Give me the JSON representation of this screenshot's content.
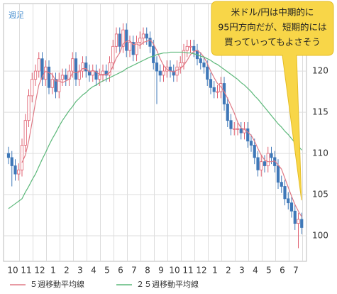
{
  "chart_data": {
    "type": "candlestick",
    "title": "週足",
    "categories": [
      "10",
      null,
      null,
      null,
      "11",
      null,
      null,
      null,
      "12",
      null,
      null,
      null,
      "1",
      null,
      null,
      null,
      "2",
      null,
      null,
      null,
      "3",
      null,
      null,
      null,
      "4",
      null,
      null,
      null,
      "5",
      null,
      null,
      null,
      "6",
      null,
      null,
      null,
      "7",
      null,
      null,
      null,
      "8",
      null,
      null,
      null,
      "9",
      null,
      null,
      null,
      "10",
      null,
      null,
      null,
      "11",
      null,
      null,
      null,
      "12",
      null,
      null,
      null,
      "1",
      null,
      null,
      null,
      "2",
      null,
      null,
      null,
      "3",
      null,
      null,
      null,
      "4",
      null,
      null,
      null,
      "5",
      null,
      null,
      null,
      "6",
      null,
      null,
      null,
      "7",
      null,
      null,
      null
    ],
    "open": [
      110,
      109.5,
      108.5,
      107.5,
      108,
      111,
      114,
      117,
      119,
      120,
      121.5,
      119,
      120.5,
      118,
      119,
      117.5,
      119,
      119.5,
      119,
      120,
      121.5,
      119,
      120,
      121,
      120,
      119.5,
      120,
      119,
      119.5,
      120,
      119.5,
      121,
      123,
      124.5,
      123,
      125,
      122.5,
      123.5,
      122,
      123.5,
      124,
      124.5,
      124,
      123,
      121,
      120,
      119.5,
      120,
      120.5,
      120,
      119.5,
      120.5,
      121,
      122.5,
      123,
      123,
      122.5,
      121.5,
      121,
      120.5,
      119,
      118,
      117.5,
      117.5,
      118.5,
      116,
      114,
      113,
      113,
      113,
      112.5,
      113,
      111.5,
      111,
      109.5,
      108,
      109,
      108.5,
      110,
      109.5,
      108.5,
      106.5,
      106,
      104.5,
      104,
      103,
      101.5,
      102
    ],
    "high": [
      110.8,
      110.3,
      109.3,
      108.8,
      111.8,
      114.8,
      117.8,
      119.8,
      120.8,
      122.3,
      122.3,
      121.3,
      121.3,
      119.8,
      119.8,
      119.8,
      120.3,
      120.3,
      120.8,
      122.3,
      122.3,
      120.8,
      121.8,
      121.8,
      120.8,
      120.8,
      120.8,
      120.3,
      120.8,
      120.8,
      121.8,
      123.8,
      125.3,
      125.3,
      125.8,
      125.8,
      124.3,
      124.3,
      124.3,
      124.8,
      125.3,
      125.3,
      124.8,
      123.8,
      121.8,
      120.8,
      120.8,
      121.3,
      121.3,
      120.8,
      121.3,
      121.8,
      123.3,
      123.8,
      123.8,
      123.8,
      123.3,
      122.3,
      121.8,
      121.3,
      119.8,
      118.8,
      118.3,
      119.3,
      119.3,
      116.8,
      114.8,
      113.8,
      113.8,
      113.8,
      113.8,
      113.8,
      112.3,
      111.8,
      110.3,
      109.8,
      109.8,
      110.8,
      110.8,
      110.3,
      109.3,
      107.3,
      106.8,
      105.3,
      104.8,
      103.8,
      102.8,
      102.8
    ],
    "low": [
      108.7,
      106.0,
      106.7,
      106.7,
      107.2,
      110.2,
      113.2,
      116.2,
      118.2,
      119.2,
      118.2,
      118.2,
      117.2,
      117.2,
      116.7,
      116.7,
      118.2,
      118.2,
      118.2,
      119.2,
      118.2,
      118.2,
      119.2,
      119.2,
      118.7,
      118.7,
      118.2,
      118.2,
      118.7,
      118.7,
      118.7,
      120.2,
      122.2,
      122.2,
      122.2,
      121.7,
      121.7,
      121.2,
      121.2,
      122.7,
      123.2,
      123.2,
      122.2,
      120.2,
      116.0,
      118.7,
      118.7,
      119.2,
      119.2,
      118.7,
      118.7,
      119.7,
      120.2,
      121.7,
      122.2,
      121.7,
      120.7,
      120.2,
      119.7,
      118.2,
      117.2,
      116.7,
      116.7,
      116.7,
      115.2,
      113.2,
      112.2,
      112.2,
      112.2,
      111.7,
      111.7,
      110.7,
      110.2,
      108.7,
      107.2,
      107.2,
      107.7,
      107.7,
      108.7,
      107.7,
      105.7,
      105.2,
      103.7,
      103.2,
      102.2,
      100.7,
      98.5,
      100.2
    ],
    "close": [
      109.5,
      108.5,
      107.5,
      108,
      111,
      114,
      117,
      119,
      120,
      121.5,
      119,
      120.5,
      118,
      119,
      117.5,
      119,
      119.5,
      119,
      120,
      121.5,
      119,
      120,
      121,
      120,
      119.5,
      120,
      119,
      119.5,
      120,
      119.5,
      121,
      123,
      124.5,
      123,
      125,
      122.5,
      123.5,
      122,
      123.5,
      124,
      124.5,
      124,
      123,
      121,
      120,
      119.5,
      120,
      120.5,
      120,
      119.5,
      120.5,
      121,
      122.5,
      123,
      123,
      122.5,
      121.5,
      121,
      120.5,
      119,
      118,
      117.5,
      117.5,
      118.5,
      116,
      114,
      113,
      113,
      113,
      112.5,
      113,
      111.5,
      111,
      109.5,
      108,
      109,
      108.5,
      110,
      109.5,
      108.5,
      106.5,
      106,
      104.5,
      104,
      103,
      101.5,
      102,
      101
    ],
    "up_color": "#e06070",
    "down_color": "#3f78b8",
    "series": [
      {
        "name": "５週移動平均線",
        "color": "#e07a86",
        "values": [
          null,
          null,
          null,
          null,
          108.9,
          109.8,
          111.5,
          113.8,
          116.2,
          118.3,
          119.3,
          120,
          119.8,
          119.6,
          118.8,
          118.8,
          118.6,
          118.8,
          119,
          119.8,
          119.8,
          119.9,
          120.3,
          120.3,
          119.9,
          120.1,
          119.9,
          119.6,
          119.6,
          119.6,
          119.8,
          120.6,
          121.6,
          122.2,
          123.3,
          123.6,
          123.7,
          123.2,
          123.3,
          123.1,
          123.5,
          123.6,
          123.8,
          123.3,
          122.5,
          121.5,
          120.7,
          120.2,
          120,
          119.9,
          120.1,
          120.3,
          120.7,
          121.3,
          122,
          122.4,
          122.5,
          122.2,
          121.7,
          120.9,
          120,
          119.2,
          118.5,
          118.1,
          117.5,
          116.7,
          115.8,
          114.9,
          113.8,
          113.1,
          112.9,
          112.6,
          112.2,
          111.5,
          110.6,
          109.8,
          109.2,
          109,
          109,
          109.1,
          108.6,
          108.1,
          107,
          105.9,
          104.8,
          103.8,
          103,
          102.3
        ]
      },
      {
        "name": "２５週移動平均線",
        "color": "#5cb87a",
        "values": [
          103.3,
          103.6,
          103.9,
          104.2,
          104.5,
          105.3,
          106,
          106.8,
          107.5,
          108.4,
          109.3,
          110.1,
          111,
          111.8,
          112.5,
          113.3,
          114,
          114.6,
          115.2,
          115.7,
          116.3,
          116.7,
          117.1,
          117.4,
          117.8,
          118.1,
          118.3,
          118.6,
          118.8,
          119,
          119.2,
          119.4,
          119.6,
          119.8,
          120,
          120.3,
          120.5,
          120.7,
          120.9,
          121.1,
          121.3,
          121.5,
          121.7,
          121.8,
          122,
          122.1,
          122.2,
          122.2,
          122.3,
          122.3,
          122.3,
          122.3,
          122.3,
          122.2,
          122.2,
          122.1,
          122,
          121.8,
          121.7,
          121.5,
          121.3,
          121,
          120.8,
          120.5,
          120.2,
          119.9,
          119.6,
          119.3,
          119,
          118.6,
          118.3,
          117.9,
          117.5,
          117,
          116.6,
          116.1,
          115.6,
          115.1,
          114.6,
          114.1,
          113.6,
          113.2,
          112.7,
          112.3,
          111.8,
          111.3,
          110.9,
          110.4
        ]
      }
    ],
    "ylim": [
      96.9,
      128.2
    ],
    "yticks": [
      100,
      105,
      110,
      115,
      120
    ],
    "grid": true,
    "annotation": [
      "米ドル/円は中期的に",
      "95円方向だが、短期的には",
      "買っていってもよさそう"
    ]
  }
}
